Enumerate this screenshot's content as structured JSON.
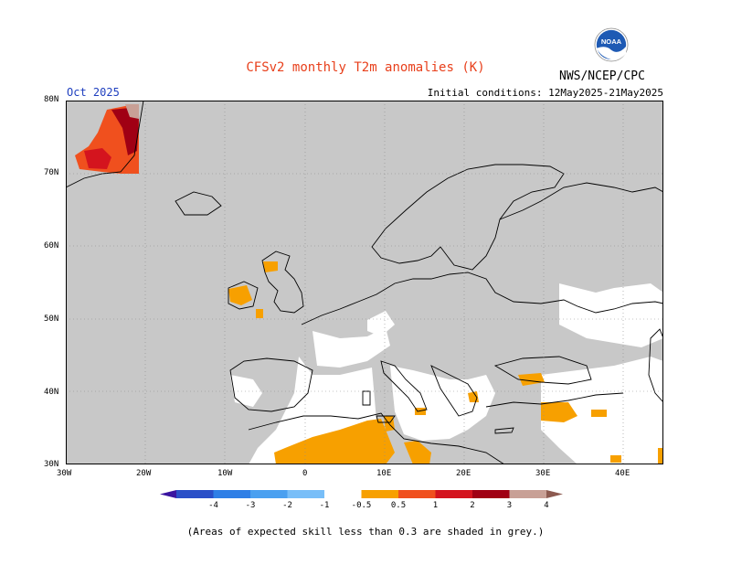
{
  "title": "CFSv2 monthly T2m anomalies (K)",
  "period": "Oct 2025",
  "initial_conditions": "Initial conditions: 12May2025-21May2025",
  "agency": "NWS/NCEP/CPC",
  "logo_text": "NOAA",
  "footnote": "(Areas of expected skill less than 0.3 are shaded in grey.)",
  "map": {
    "lon_range": [
      -30,
      45
    ],
    "lat_range": [
      30,
      80
    ],
    "lat_labels": [
      "80N",
      "70N",
      "60N",
      "50N",
      "40N",
      "30N"
    ],
    "lon_labels": [
      "30W",
      "20W",
      "10W",
      "0",
      "10E",
      "20E",
      "30E",
      "40E"
    ],
    "grid": true,
    "background_color": "#c8c8c8"
  },
  "colorbar": {
    "labels": [
      "-4",
      "-3",
      "-2",
      "-1",
      "-0.5",
      "0.5",
      "1",
      "2",
      "3",
      "4"
    ],
    "colors": [
      "#3a14a0",
      "#2a4fc8",
      "#2f7fe6",
      "#4aa0f0",
      "#78bef8",
      "#ffffff",
      "#f7a000",
      "#f0501e",
      "#d4141e",
      "#a00014",
      "#c8a096",
      "#8c5a50"
    ]
  },
  "chart_data": {
    "type": "heatmap",
    "title": "CFSv2 monthly T2m anomalies (K)",
    "variable": "2m temperature anomaly",
    "units": "K",
    "month": "Oct 2025",
    "notable_regions": [
      {
        "region": "East Greenland",
        "anomaly_range": "1 to 4"
      },
      {
        "region": "Ireland / Scotland",
        "anomaly_range": "0.5 to 1"
      },
      {
        "region": "North Africa (Algeria/Tunisia)",
        "anomaly_range": "0.5 to 1"
      },
      {
        "region": "Turkey",
        "anomaly_range": "0.5 to 1"
      },
      {
        "region": "Most of Europe",
        "anomaly_range": "low skill (grey)"
      }
    ]
  }
}
